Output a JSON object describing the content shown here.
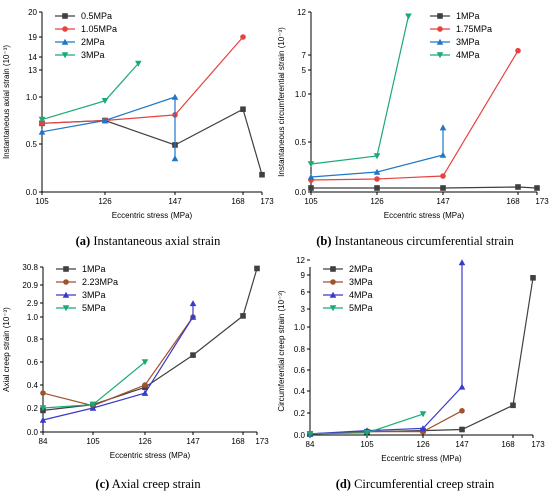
{
  "chart_data": [
    {
      "id": "a",
      "type": "line",
      "caption_letter": "(a)",
      "caption_text": "Instantaneous axial strain",
      "xlabel": "Eccentric stress (MPa)",
      "ylabel": "Instantaneous axial strain (10⁻³)",
      "x_ticks": [
        "105",
        "126",
        "147",
        "168",
        "173"
      ],
      "y_ticks": [
        "0.0",
        "0.5",
        "1.0",
        "13",
        "14",
        "19",
        "20"
      ],
      "legend_position": "top-left",
      "series": [
        {
          "name": "0.5MPa",
          "color": "#404040",
          "marker": "square",
          "x": [
            105,
            126,
            147,
            168,
            173
          ],
          "y": [
            0.72,
            0.75,
            0.49,
            0.87,
            0.18
          ]
        },
        {
          "name": "1.05MPa",
          "color": "#e8413e",
          "marker": "circle",
          "x": [
            105,
            126,
            147,
            168
          ],
          "y": [
            0.72,
            0.75,
            0.81,
            19.0
          ]
        },
        {
          "name": "2MPa",
          "color": "#1f77c9",
          "marker": "triangle-up",
          "x": [
            105,
            126,
            147,
            147
          ],
          "y": [
            0.63,
            0.75,
            1.0,
            0.35
          ]
        },
        {
          "name": "3MPa",
          "color": "#1aaa74",
          "marker": "triangle-down",
          "x": [
            105,
            126,
            136
          ],
          "y": [
            0.76,
            0.96,
            13.5
          ]
        }
      ]
    },
    {
      "id": "b",
      "type": "line",
      "caption_letter": "(b)",
      "caption_text": "Instantaneous circumferential strain",
      "xlabel": "Eccentric stress (MPa)",
      "ylabel": "Instantaneous circumferential strain (10⁻³)",
      "x_ticks": [
        "105",
        "126",
        "147",
        "168",
        "173"
      ],
      "y_ticks": [
        "0.0",
        "0.5",
        "1.0",
        "5",
        "7",
        "12"
      ],
      "legend_position": "top-right",
      "series": [
        {
          "name": "1MPa",
          "color": "#404040",
          "marker": "square",
          "x": [
            105,
            126,
            147,
            168,
            173
          ],
          "y": [
            0.04,
            0.04,
            0.04,
            0.05,
            0.04
          ]
        },
        {
          "name": "1.75MPa",
          "color": "#e8413e",
          "marker": "circle",
          "x": [
            105,
            126,
            147,
            168
          ],
          "y": [
            0.12,
            0.13,
            0.16,
            7.5
          ]
        },
        {
          "name": "3MPa",
          "color": "#1f77c9",
          "marker": "triangle-up",
          "x": [
            105,
            126,
            147,
            147
          ],
          "y": [
            0.15,
            0.2,
            0.37,
            0.65
          ]
        },
        {
          "name": "4MPa",
          "color": "#1aaa74",
          "marker": "triangle-down",
          "x": [
            105,
            126,
            136
          ],
          "y": [
            0.28,
            0.36,
            11.5
          ]
        }
      ]
    },
    {
      "id": "c",
      "type": "line",
      "caption_letter": "(c)",
      "caption_text": "Axial creep strain",
      "xlabel": "Eccentric stress (MPa)",
      "ylabel": "Axial creep strain (10⁻³)",
      "x_ticks": [
        "84",
        "105",
        "126",
        "147",
        "168",
        "173"
      ],
      "y_ticks": [
        "0.0",
        "0.2",
        "0.4",
        "0.6",
        "0.8",
        "1.0",
        "2.9",
        "20.9",
        "30.8"
      ],
      "legend_position": "top-left",
      "series": [
        {
          "name": "1MPa",
          "color": "#404040",
          "marker": "square",
          "x": [
            84,
            105,
            126,
            147,
            168,
            173
          ],
          "y": [
            0.18,
            0.23,
            0.38,
            0.66,
            1.15,
            30.0
          ]
        },
        {
          "name": "2.23MPa",
          "color": "#a0522d",
          "marker": "circle",
          "x": [
            84,
            105,
            126,
            147
          ],
          "y": [
            0.33,
            0.22,
            0.4,
            1.0
          ]
        },
        {
          "name": "3MPa",
          "color": "#3a3ac8",
          "marker": "triangle-up",
          "x": [
            84,
            105,
            126,
            147,
            147
          ],
          "y": [
            0.1,
            0.2,
            0.33,
            1.0,
            2.85
          ]
        },
        {
          "name": "5MPa",
          "color": "#1aaa74",
          "marker": "triangle-down",
          "x": [
            84,
            105,
            126
          ],
          "y": [
            0.2,
            0.23,
            0.6
          ]
        }
      ]
    },
    {
      "id": "d",
      "type": "line",
      "caption_letter": "(d)",
      "caption_text": "Circumferential creep strain",
      "xlabel": "Eccentric stress (MPa)",
      "ylabel": "Circumferential creep strain (10⁻³)",
      "x_ticks": [
        "84",
        "105",
        "126",
        "147",
        "168",
        "173"
      ],
      "y_ticks": [
        "0.0",
        "0.2",
        "0.4",
        "0.6",
        "0.8",
        "1.0",
        "3",
        "6",
        "9",
        "12"
      ],
      "legend_position": "top-left",
      "series": [
        {
          "name": "2MPa",
          "color": "#404040",
          "marker": "square",
          "x": [
            84,
            105,
            126,
            147,
            168,
            173
          ],
          "y": [
            0.01,
            0.03,
            0.04,
            0.05,
            0.27,
            8.5
          ]
        },
        {
          "name": "3MPa",
          "color": "#a0522d",
          "marker": "circle",
          "x": [
            84,
            105,
            126,
            147
          ],
          "y": [
            0.01,
            0.03,
            0.03,
            0.22
          ]
        },
        {
          "name": "4MPa",
          "color": "#3a3ac8",
          "marker": "triangle-up",
          "x": [
            84,
            105,
            126,
            147,
            147
          ],
          "y": [
            0.01,
            0.04,
            0.06,
            0.44,
            11.5
          ]
        },
        {
          "name": "5MPa",
          "color": "#1aaa74",
          "marker": "triangle-down",
          "x": [
            84,
            105,
            126
          ],
          "y": [
            0.01,
            0.02,
            0.19
          ]
        }
      ]
    }
  ]
}
